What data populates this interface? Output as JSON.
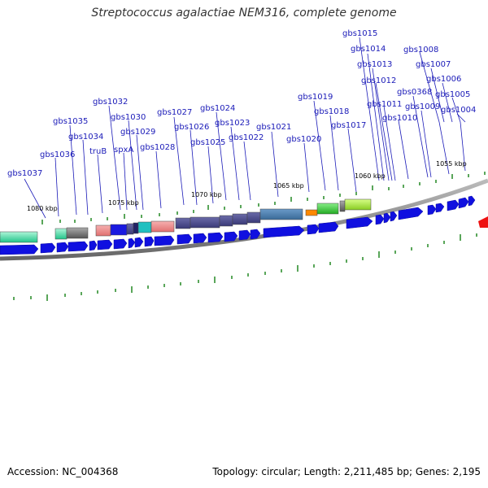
{
  "title": "Streptococcus agalactiae NEM316, complete genome",
  "footer": {
    "accession": "Accession: NC_004368",
    "topology": "Topology: circular; Length: 2,211,485 bp; Genes: 2,195"
  },
  "colors": {
    "label": "#1a1ab8",
    "gene_arrow": "#1010e0",
    "backbone": "#777777",
    "tick": "#228822"
  },
  "scale_labels": [
    "1080 kbp",
    "1075 kbp",
    "1070 kbp",
    "1065 kbp",
    "1060 kbp",
    "1055 kbp"
  ],
  "gene_labels": [
    "gbs1015",
    "gbs1014",
    "gbs1013",
    "gbs1012",
    "gbs1011",
    "gbs1010",
    "gbs1008",
    "gbs1007",
    "gbs1006",
    "gbs1005",
    "gbs1004",
    "gbs0368",
    "gbs1009",
    "gbs1019",
    "gbs1018",
    "gbs1017",
    "gbs1020",
    "gbs1021",
    "gbs1024",
    "gbs1023",
    "gbs1022",
    "gbs1027",
    "gbs1026",
    "gbs1025",
    "gbs1032",
    "gbs1030",
    "gbs1029",
    "gbs1028",
    "spxA",
    "truB",
    "gbs1035",
    "gbs1034",
    "gbs1036",
    "gbs1037"
  ]
}
